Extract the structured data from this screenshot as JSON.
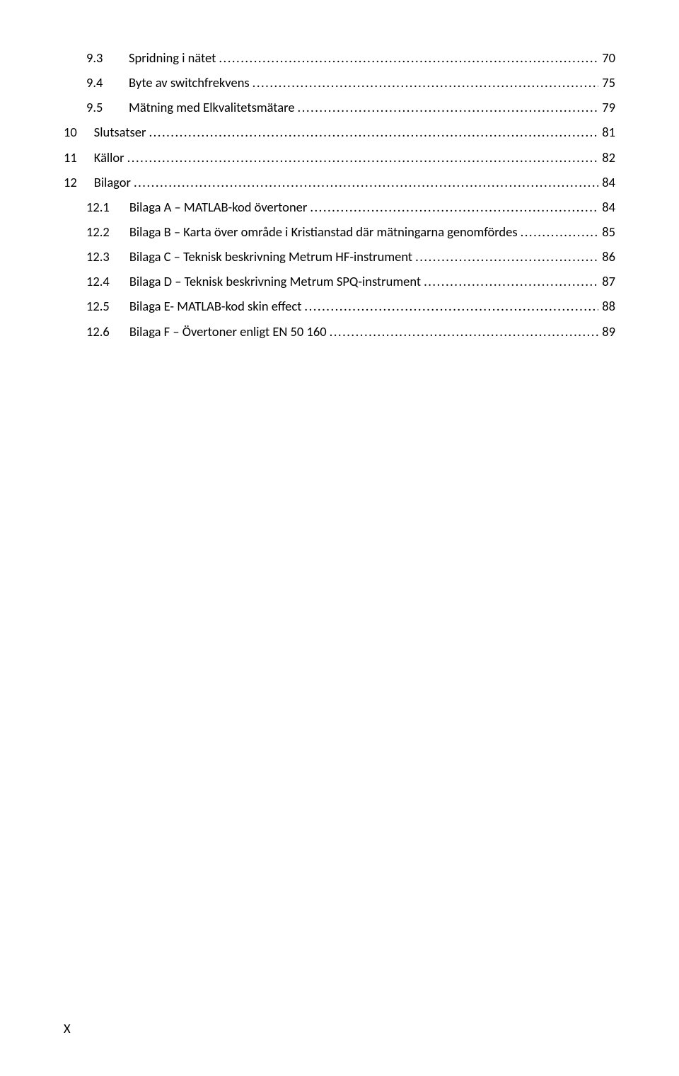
{
  "toc": {
    "font_family": "Calibri",
    "font_size_pt": 11,
    "text_color": "#000000",
    "background_color": "#ffffff",
    "entries": [
      {
        "level": 2,
        "number": "9.3",
        "title": "Spridning i nätet",
        "page": "70"
      },
      {
        "level": 2,
        "number": "9.4",
        "title": "Byte av switchfrekvens",
        "page": "75"
      },
      {
        "level": 2,
        "number": "9.5",
        "title": "Mätning med Elkvalitetsmätare",
        "page": "79"
      },
      {
        "level": 1,
        "number": "10",
        "title": "Slutsatser",
        "page": "81"
      },
      {
        "level": 1,
        "number": "11",
        "title": "Källor",
        "page": "82"
      },
      {
        "level": 1,
        "number": "12",
        "title": "Bilagor",
        "page": "84"
      },
      {
        "level": 2,
        "number": "12.1",
        "title": "Bilaga A – MATLAB-kod övertoner",
        "page": "84"
      },
      {
        "level": 2,
        "number": "12.2",
        "title": "Bilaga B – Karta över område i Kristianstad där mätningarna genomfördes",
        "page": "85"
      },
      {
        "level": 2,
        "number": "12.3",
        "title": "Bilaga C – Teknisk beskrivning Metrum HF-instrument",
        "page": "86"
      },
      {
        "level": 2,
        "number": "12.4",
        "title": "Bilaga D – Teknisk beskrivning Metrum SPQ-instrument",
        "page": "87"
      },
      {
        "level": 2,
        "number": "12.5",
        "title": "Bilaga E- MATLAB-kod skin effect",
        "page": "88"
      },
      {
        "level": 2,
        "number": "12.6",
        "title": "Bilaga F – Övertoner enligt EN 50 160",
        "page": "89"
      }
    ]
  },
  "footer": {
    "page_label": "X"
  }
}
